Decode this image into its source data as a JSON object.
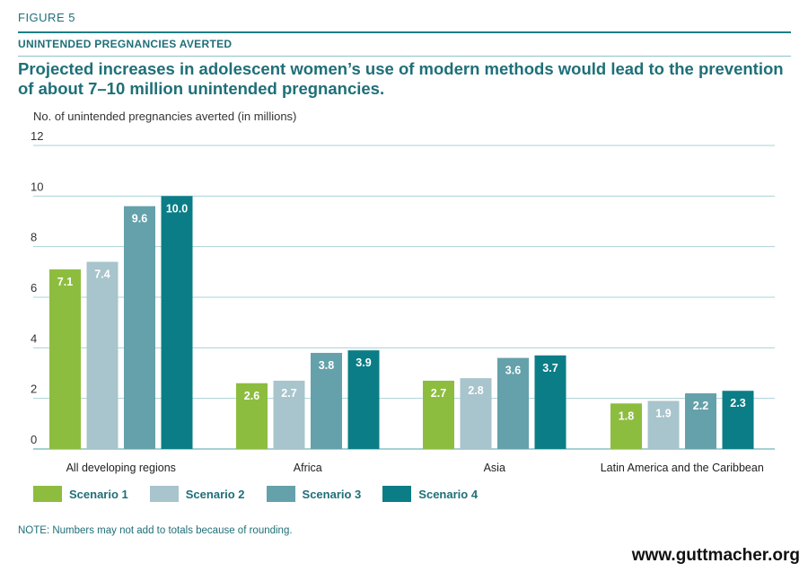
{
  "figure_label": "FIGURE 5",
  "section_title": "UNINTENDED PREGNANCIES AVERTED",
  "headline": "Projected increases in adolescent women’s use of modern methods would lead to the prevention of about 7–10 million unintended pregnancies.",
  "note": "NOTE: Numbers may not add to totals because of rounding.",
  "source_url": "www.guttmacher.org",
  "chart_data": {
    "type": "bar",
    "ylabel": "No. of unintended pregnancies averted (in millions)",
    "ylim": [
      0,
      12
    ],
    "yticks": [
      0,
      2,
      4,
      6,
      8,
      10,
      12
    ],
    "grid": true,
    "legend_position": "bottom-left",
    "categories": [
      "All developing regions",
      "Africa",
      "Asia",
      "Latin America and the Caribbean"
    ],
    "series": [
      {
        "name": "Scenario 1",
        "color": "#8dbd3f",
        "values": [
          7.1,
          2.6,
          2.7,
          1.8
        ]
      },
      {
        "name": "Scenario 2",
        "color": "#a8c4cc",
        "values": [
          7.4,
          2.7,
          2.8,
          1.9
        ]
      },
      {
        "name": "Scenario 3",
        "color": "#64a1ab",
        "values": [
          9.6,
          3.8,
          3.6,
          2.2
        ]
      },
      {
        "name": "Scenario 4",
        "color": "#0b7d86",
        "values": [
          10.0,
          3.9,
          3.7,
          2.3
        ]
      }
    ]
  }
}
